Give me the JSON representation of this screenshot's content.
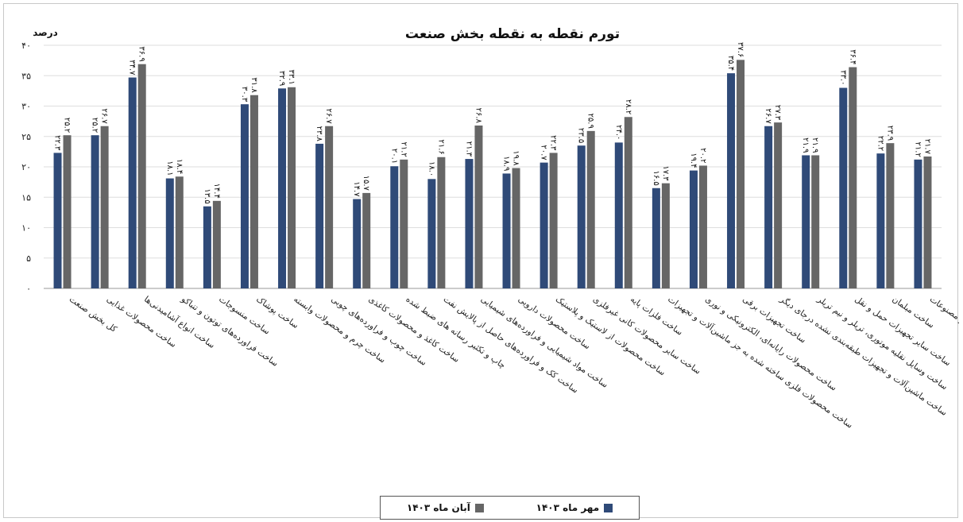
{
  "chart_data": {
    "type": "bar",
    "title": "تورم نقطه به نقطه بخش صنعت",
    "ylabel": "درصد",
    "ylim": [
      0,
      40
    ],
    "yticks": [
      0,
      5,
      10,
      15,
      20,
      25,
      30,
      35,
      40
    ],
    "ytick_labels": [
      "۰",
      "۵",
      "۱۰",
      "۱۵",
      "۲۰",
      "۲۵",
      "۳۰",
      "۳۵",
      "۴۰"
    ],
    "grid": true,
    "legend_position": "bottom-center",
    "categories": [
      "کل بخش صنعت",
      "ساخت محصولات غذایی",
      "ساخت انواع آشامیدنی‌ها",
      "ساخت فراورده‌های توتون و تنباکو",
      "ساخت منسوجات",
      "ساخت پوشاک",
      "ساخت چرم و محصولات وابسته",
      "ساخت چوب و فراورده‌های چوبی",
      "ساخت کاغذ و محصولات کاغذی",
      "چاپ و تکثیر رسانه های ضبط شده",
      "ساخت کک و فراورده‌های حاصل از پالایش نفت",
      "ساخت مواد شیمیایی و فراورده‌های شیمیایی",
      "ساخت محصولات دارویی",
      "ساخت محصولات از لاستیک و پلاستیک",
      "ساخت سایر محصولات کانی غیرفلزی",
      "ساخت فلزات پایه",
      "ساخت محصولات فلزی ساخته شده به جز ماشین‌آلات و تجهیزات",
      "ساخت محصولات رایانه‌ای، الکترونیکی و نوری",
      "ساخت تجهیزات برقی",
      "ساخت ماشین‌آلات و تجهیزات طبقه‌بندی نشده درجای دیگر",
      "ساخت وسایل نقلیه موتوری، تریلر و نیم تریلر",
      "ساخت سایر تجهیزات حمل و نقل",
      "ساخت مبلمان",
      "ساخت سایر مصنوعات"
    ],
    "series": [
      {
        "name": "مهر ماه ۱۴۰۳",
        "color": "#2f4a78",
        "values": [
          22.3,
          25.2,
          34.7,
          18.1,
          13.5,
          30.3,
          32.9,
          23.8,
          14.7,
          20.1,
          18.0,
          21.3,
          18.9,
          20.7,
          23.5,
          24.0,
          16.5,
          19.4,
          35.4,
          26.7,
          21.9,
          33.0,
          22.2,
          21.2
        ],
        "labels": [
          "۲۲.۳",
          "۲۵.۲",
          "۳۴.۷",
          "۱۸.۱",
          "۱۳.۵",
          "۳۰.۳",
          "۳۲.۹",
          "۲۳.۸",
          "۱۴.۷",
          "۲۰.۱",
          "۱۸.۰",
          "۲۱.۳",
          "۱۸.۹",
          "۲۰.۷",
          "۲۳.۵",
          "۲۴.۰",
          "۱۶.۵",
          "۱۹.۴",
          "۳۵.۴",
          "۲۶.۷",
          "۲۱.۹",
          "۳۳.۰",
          "۲۲.۲",
          "۲۱.۲"
        ]
      },
      {
        "name": "آبان ماه ۱۴۰۳",
        "color": "#666666",
        "values": [
          25.2,
          26.7,
          36.9,
          18.4,
          14.4,
          31.8,
          33.1,
          26.7,
          15.7,
          21.2,
          21.6,
          26.8,
          19.8,
          22.3,
          25.9,
          28.2,
          17.3,
          20.2,
          37.6,
          27.3,
          21.9,
          36.4,
          23.9,
          21.7
        ],
        "labels": [
          "۲۵.۲",
          "۲۶.۷",
          "۳۶.۹",
          "۱۸.۴",
          "۱۴.۴",
          "۳۱.۸",
          "۳۳.۱",
          "۲۶.۷",
          "۱۵.۷",
          "۲۱.۲",
          "۲۱.۶",
          "۲۶.۸",
          "۱۹.۸",
          "۲۲.۳",
          "۲۵.۹",
          "۲۸.۲",
          "۱۷.۳",
          "۲۰.۲",
          "۳۷.۶",
          "۲۷.۳",
          "۲۱.۹",
          "۳۶.۴",
          "۲۳.۹",
          "۲۱.۷"
        ]
      }
    ]
  }
}
